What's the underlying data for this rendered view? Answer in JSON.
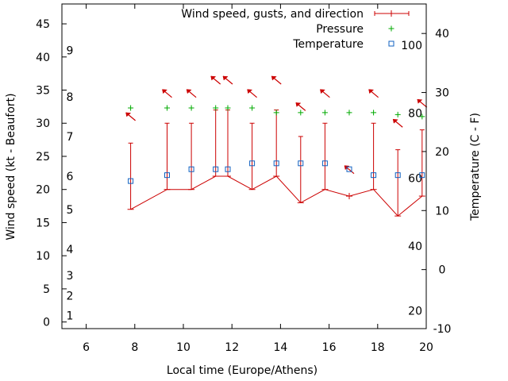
{
  "chart_data": {
    "type": "line",
    "xlabel": "Local time (Europe/Athens)",
    "ylabel": "Wind speed (kt - Beaufort)",
    "y2label": "Temperature (C - F)",
    "xlim": [
      5,
      20
    ],
    "ylim": [
      -1,
      48
    ],
    "y2lim": [
      -10,
      45
    ],
    "x_ticks": [
      6,
      8,
      10,
      12,
      14,
      16,
      18,
      20
    ],
    "y_ticks": [
      0,
      5,
      10,
      15,
      20,
      25,
      30,
      35,
      40,
      45
    ],
    "y2_ticks": [
      -10,
      0,
      10,
      20,
      30,
      40
    ],
    "beaufort_labels": [
      {
        "label": "1",
        "y": 1
      },
      {
        "label": "2",
        "y": 4
      },
      {
        "label": "3",
        "y": 7
      },
      {
        "label": "4",
        "y": 11
      },
      {
        "label": "5",
        "y": 17
      },
      {
        "label": "6",
        "y": 22
      },
      {
        "label": "7",
        "y": 28
      },
      {
        "label": "8",
        "y": 34
      },
      {
        "label": "9",
        "y": 41
      }
    ],
    "fahrenheit_labels": [
      {
        "label": "20",
        "t": -7
      },
      {
        "label": "40",
        "t": 4
      },
      {
        "label": "60",
        "t": 15.5
      },
      {
        "label": "80",
        "t": 26.5
      },
      {
        "label": "100",
        "t": 38
      }
    ],
    "legend": [
      {
        "name": "Wind speed, gusts, and direction",
        "color": "#cc0000",
        "marker": "errorbar"
      },
      {
        "name": "Pressure",
        "color": "#00aa00",
        "marker": "plus"
      },
      {
        "name": "Temperature",
        "color": "#1060c0",
        "marker": "square"
      }
    ],
    "legend_position": "top-right",
    "series": [
      {
        "name": "Wind speed, gusts, and direction",
        "x": [
          7.83,
          9.33,
          10.33,
          11.33,
          11.83,
          12.83,
          13.83,
          14.83,
          15.83,
          16.83,
          17.83,
          18.83,
          19.83
        ],
        "values": [
          17,
          20,
          20,
          22,
          22,
          20,
          22,
          18,
          20,
          19,
          20,
          16,
          19
        ],
        "gusts": [
          27,
          30,
          30,
          32,
          32,
          30,
          32,
          28,
          30,
          null,
          30,
          26,
          29
        ],
        "dir_deg": [
          315,
          315,
          315,
          315,
          315,
          315,
          315,
          315,
          315,
          315,
          315,
          315,
          315
        ],
        "dir_y": [
          31,
          34.5,
          34.5,
          36.5,
          36.5,
          34.5,
          36.5,
          32.5,
          34.5,
          23,
          34.5,
          30,
          33
        ]
      },
      {
        "name": "Pressure",
        "x": [
          7.83,
          9.33,
          10.33,
          11.33,
          11.83,
          12.83,
          13.83,
          14.83,
          15.83,
          16.83,
          17.83,
          18.83,
          19.83
        ],
        "values": [
          32.3,
          32.3,
          32.3,
          32.3,
          32.3,
          32.3,
          31.6,
          31.6,
          31.6,
          31.6,
          31.6,
          31.3,
          31.0
        ]
      },
      {
        "name": "Temperature",
        "x": [
          7.83,
          9.33,
          10.33,
          11.33,
          11.83,
          12.83,
          13.83,
          14.83,
          15.83,
          16.83,
          17.83,
          18.83,
          19.83
        ],
        "values": [
          15,
          16,
          17,
          17,
          17,
          18,
          18,
          18,
          18,
          17,
          16,
          16,
          16
        ]
      }
    ]
  }
}
